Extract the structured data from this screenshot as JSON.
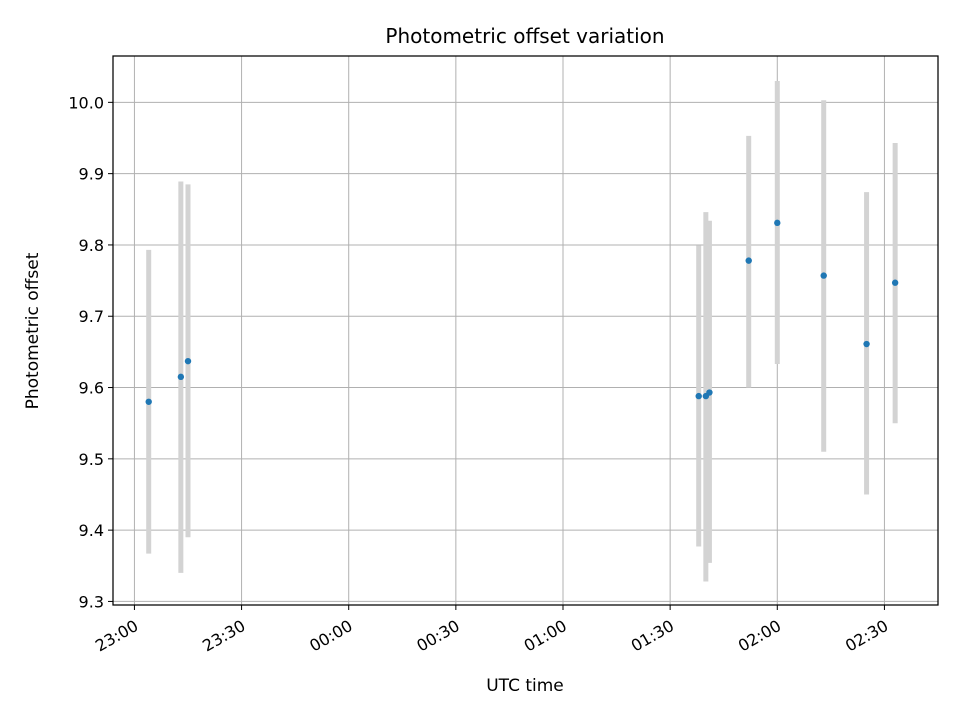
{
  "chart_data": {
    "type": "scatter",
    "title": "Photometric offset variation",
    "xlabel": "UTC time",
    "ylabel": "Photometric offset",
    "xlim": [
      "22:54",
      "02:45"
    ],
    "ylim": [
      9.295,
      10.065
    ],
    "x_ticks": [
      "23:00",
      "23:30",
      "00:00",
      "00:30",
      "01:00",
      "01:30",
      "02:00",
      "02:30"
    ],
    "y_ticks": [
      9.3,
      9.4,
      9.5,
      9.6,
      9.7,
      9.8,
      9.9,
      10.0
    ],
    "y_tick_labels": [
      "9.3",
      "9.4",
      "9.5",
      "9.6",
      "9.7",
      "9.8",
      "9.9",
      "10.0"
    ],
    "grid": true,
    "marker_color": "#1f77b4",
    "errorbar_color": "#d3d3d3",
    "series": [
      {
        "points": [
          {
            "x": "23:04",
            "y": 9.58,
            "yerr_low": 9.367,
            "yerr_high": 9.793
          },
          {
            "x": "23:13",
            "y": 9.615,
            "yerr_low": 9.34,
            "yerr_high": 9.889
          },
          {
            "x": "23:15",
            "y": 9.637,
            "yerr_low": 9.39,
            "yerr_high": 9.885
          },
          {
            "x": "01:38",
            "y": 9.588,
            "yerr_low": 9.377,
            "yerr_high": 9.799
          },
          {
            "x": "01:40",
            "y": 9.588,
            "yerr_low": 9.328,
            "yerr_high": 9.846
          },
          {
            "x": "01:41",
            "y": 9.593,
            "yerr_low": 9.354,
            "yerr_high": 9.834
          },
          {
            "x": "01:52",
            "y": 9.778,
            "yerr_low": 9.6,
            "yerr_high": 9.953
          },
          {
            "x": "02:00",
            "y": 9.831,
            "yerr_low": 9.633,
            "yerr_high": 10.03
          },
          {
            "x": "02:13",
            "y": 9.757,
            "yerr_low": 9.51,
            "yerr_high": 10.003
          },
          {
            "x": "02:25",
            "y": 9.661,
            "yerr_low": 9.45,
            "yerr_high": 9.874
          },
          {
            "x": "02:33",
            "y": 9.747,
            "yerr_low": 9.55,
            "yerr_high": 9.943
          }
        ]
      }
    ]
  }
}
